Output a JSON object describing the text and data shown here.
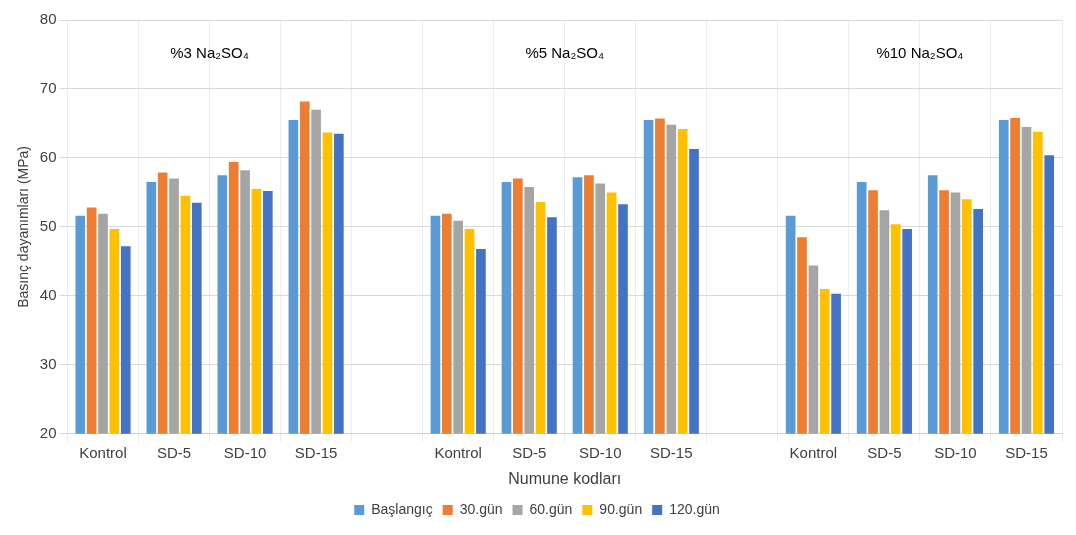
{
  "chart_data": {
    "type": "bar",
    "xlabel": "Numune kodları",
    "ylabel": "Basınç dayanımları (MPa)",
    "categories": [
      "Kontrol",
      "SD-5",
      "SD-10",
      "SD-15",
      null,
      "Kontrol",
      "SD-5",
      "SD-10",
      "SD-15",
      null,
      "Kontrol",
      "SD-5",
      "SD-10",
      "SD-15"
    ],
    "series": [
      {
        "name": "Başlangıç",
        "color": "#5b9bd5",
        "values": [
          51.6,
          56.5,
          57.5,
          65.5,
          null,
          51.6,
          56.5,
          57.2,
          65.5,
          null,
          51.6,
          56.5,
          57.5,
          65.5
        ]
      },
      {
        "name": "30.gün",
        "color": "#ed7d31",
        "values": [
          52.8,
          57.9,
          59.4,
          68.2,
          null,
          51.9,
          57.0,
          57.5,
          65.7,
          null,
          48.5,
          55.3,
          55.3,
          65.8
        ]
      },
      {
        "name": "60.gün",
        "color": "#a5a5a5",
        "values": [
          51.9,
          57.0,
          58.2,
          67.0,
          null,
          50.9,
          55.8,
          56.3,
          64.8,
          null,
          44.4,
          52.4,
          55.0,
          64.5
        ]
      },
      {
        "name": "90.gün",
        "color": "#ffc000",
        "values": [
          49.7,
          54.5,
          55.5,
          63.7,
          null,
          49.7,
          53.6,
          55.0,
          64.2,
          null,
          41.0,
          50.4,
          54.0,
          63.8
        ]
      },
      {
        "name": "120.gün",
        "color": "#4472c4",
        "values": [
          47.2,
          53.5,
          55.2,
          63.5,
          null,
          46.8,
          51.4,
          53.3,
          61.3,
          null,
          40.3,
          49.7,
          52.6,
          60.4
        ]
      }
    ],
    "ylim": [
      20,
      80
    ],
    "yticks": [
      20,
      30,
      40,
      50,
      60,
      70,
      80
    ],
    "grid": true,
    "legend": "bottom",
    "annotations": [
      "%3 Na₂SO₄",
      "%5 Na₂SO₄",
      "%10 Na₂SO₄"
    ]
  }
}
